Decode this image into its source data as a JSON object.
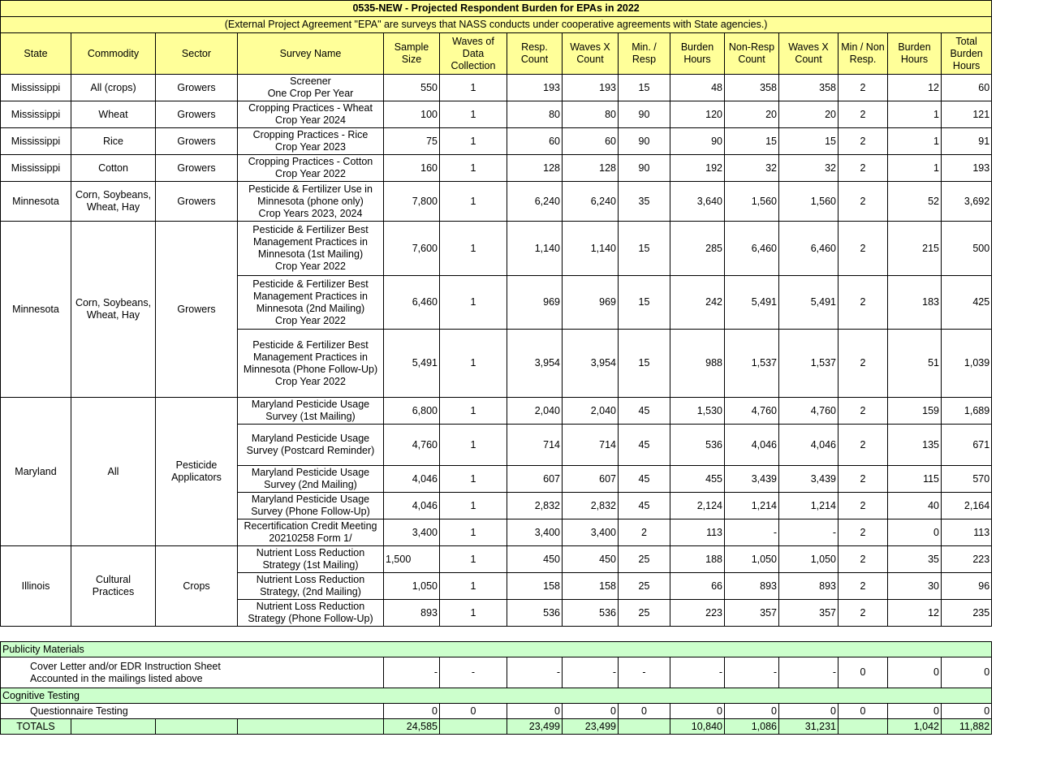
{
  "title": "0535-NEW - Projected Respondent Burden for EPAs in 2022",
  "subtitle": "(External Project Agreement \"EPA\" are surveys that NASS conducts under cooperative agreements with State agencies.)",
  "headers": [
    "State",
    "Commodity",
    "Sector",
    "Survey Name",
    "Sample\nSize",
    "Waves of\nData\nCollection",
    "Resp.\nCount",
    "Waves X\nCount",
    "Min. /\nResp",
    "Burden\nHours",
    "Non-Resp\nCount",
    "Waves X\nCount",
    "Min / Non\nResp.",
    "Burden\nHours",
    "Total\nBurden\nHours"
  ],
  "groups": [
    {
      "state": "Mississippi",
      "commodity": "All (crops)",
      "sector": "Growers",
      "rows": [
        {
          "survey": "Screener\nOne Crop Per Year",
          "values": [
            "550",
            "1",
            "193",
            "193",
            "15",
            "48",
            "358",
            "358",
            "2",
            "12",
            "60"
          ]
        }
      ]
    },
    {
      "state": "Mississippi",
      "commodity": "Wheat",
      "sector": "Growers",
      "rows": [
        {
          "survey": "Cropping Practices - Wheat\nCrop Year 2024",
          "values": [
            "100",
            "1",
            "80",
            "80",
            "90",
            "120",
            "20",
            "20",
            "2",
            "1",
            "121"
          ]
        }
      ]
    },
    {
      "state": "Mississippi",
      "commodity": "Rice",
      "sector": "Growers",
      "rows": [
        {
          "survey": "Cropping Practices - Rice\nCrop Year 2023",
          "values": [
            "75",
            "1",
            "60",
            "60",
            "90",
            "90",
            "15",
            "15",
            "2",
            "1",
            "91"
          ]
        }
      ]
    },
    {
      "state": "Mississippi",
      "commodity": "Cotton",
      "sector": "Growers",
      "rows": [
        {
          "survey": "Cropping Practices - Cotton\nCrop Year 2022",
          "values": [
            "160",
            "1",
            "128",
            "128",
            "90",
            "192",
            "32",
            "32",
            "2",
            "1",
            "193"
          ]
        }
      ]
    },
    {
      "state": "Minnesota",
      "commodity": "Corn, Soybeans,\nWheat, Hay",
      "sector": "Growers",
      "rows": [
        {
          "survey": "Pesticide & Fertilizer Use in\nMinnesota (phone only)\nCrop Years 2023, 2024",
          "values": [
            "7,800",
            "1",
            "6,240",
            "6,240",
            "35",
            "3,640",
            "1,560",
            "1,560",
            "2",
            "52",
            "3,692"
          ]
        }
      ]
    },
    {
      "state": "Minnesota",
      "commodity": "Corn, Soybeans,\nWheat, Hay",
      "sector": "Growers",
      "rows": [
        {
          "survey": "Pesticide & Fertilizer Best\nManagement Practices in\nMinnesota (1st Mailing)\nCrop Year 2022",
          "values": [
            "7,600",
            "1",
            "1,140",
            "1,140",
            "15",
            "285",
            "6,460",
            "6,460",
            "2",
            "215",
            "500"
          ]
        },
        {
          "survey": "Pesticide & Fertilizer Best\nManagement Practices in\nMinnesota (2nd Mailing)\nCrop Year 2022",
          "values": [
            "6,460",
            "1",
            "969",
            "969",
            "15",
            "242",
            "5,491",
            "5,491",
            "2",
            "183",
            "425"
          ]
        },
        {
          "survey": "Pesticide & Fertilizer Best\nManagement Practices in\nMinnesota (Phone Follow-Up)\nCrop Year 2022",
          "values": [
            "5,491",
            "1",
            "3,954",
            "3,954",
            "15",
            "988",
            "1,537",
            "1,537",
            "2",
            "51",
            "1,039"
          ]
        }
      ]
    },
    {
      "state": "Maryland",
      "commodity": "All",
      "sector": "Pesticide\nApplicators",
      "rows": [
        {
          "survey": "Maryland Pesticide Usage\nSurvey (1st Mailing)",
          "values": [
            "6,800",
            "1",
            "2,040",
            "2,040",
            "45",
            "1,530",
            "4,760",
            "4,760",
            "2",
            "159",
            "1,689"
          ]
        },
        {
          "survey": "Maryland Pesticide Usage\nSurvey (Postcard Reminder)",
          "values": [
            "4,760",
            "1",
            "714",
            "714",
            "45",
            "536",
            "4,046",
            "4,046",
            "2",
            "135",
            "671"
          ]
        },
        {
          "survey": "Maryland Pesticide Usage\nSurvey (2nd Mailing)",
          "values": [
            "4,046",
            "1",
            "607",
            "607",
            "45",
            "455",
            "3,439",
            "3,439",
            "2",
            "115",
            "570"
          ]
        },
        {
          "survey": "Maryland Pesticide Usage\nSurvey (Phone Follow-Up)",
          "values": [
            "4,046",
            "1",
            "2,832",
            "2,832",
            "45",
            "2,124",
            "1,214",
            "1,214",
            "2",
            "40",
            "2,164"
          ]
        },
        {
          "survey": "Recertification Credit Meeting\n20210258 Form 1/",
          "values": [
            "3,400",
            "1",
            "3,400",
            "3,400",
            "2",
            "113",
            "-",
            "-",
            "2",
            "0",
            "113"
          ]
        }
      ]
    },
    {
      "state": "Illinois",
      "commodity": "Cultural\nPractices",
      "sector": "Crops",
      "rows": [
        {
          "survey": "Nutrient Loss Reduction\nStrategy (1st Mailing)",
          "values": [
            "1,500",
            "1",
            "450",
            "450",
            "25",
            "188",
            "1,050",
            "1,050",
            "2",
            "35",
            "223"
          ]
        },
        {
          "survey": "Nutrient Loss Reduction\nStrategy, (2nd Mailing)",
          "values": [
            "1,050",
            "1",
            "158",
            "158",
            "25",
            "66",
            "893",
            "893",
            "2",
            "30",
            "96"
          ]
        },
        {
          "survey": "Nutrient Loss Reduction\nStrategy (Phone Follow-Up)",
          "values": [
            "893",
            "1",
            "536",
            "536",
            "25",
            "223",
            "357",
            "357",
            "2",
            "12",
            "235"
          ]
        }
      ]
    }
  ],
  "publicity": {
    "label": "Publicity Materials",
    "item": "Cover Letter and/or EDR Instruction Sheet\nAccounted in the mailings listed above",
    "values": [
      "-",
      "-",
      "-",
      "-",
      "-",
      "-",
      "-",
      "-",
      "0",
      "0",
      "0"
    ]
  },
  "cognitive": {
    "label": "Cognitive Testing",
    "item": "Questionnaire Testing",
    "values": [
      "0",
      "0",
      "0",
      "0",
      "0",
      "0",
      "0",
      "0",
      "0",
      "0",
      "0"
    ]
  },
  "totals": {
    "label": "TOTALS",
    "values": [
      "24,585",
      "",
      "23,499",
      "23,499",
      "",
      "10,840",
      "1,086",
      "31,231",
      "",
      "1,042",
      "11,882"
    ]
  },
  "colors": {
    "header_bg": "#ffff99",
    "section_bg": "#ccffcc"
  }
}
